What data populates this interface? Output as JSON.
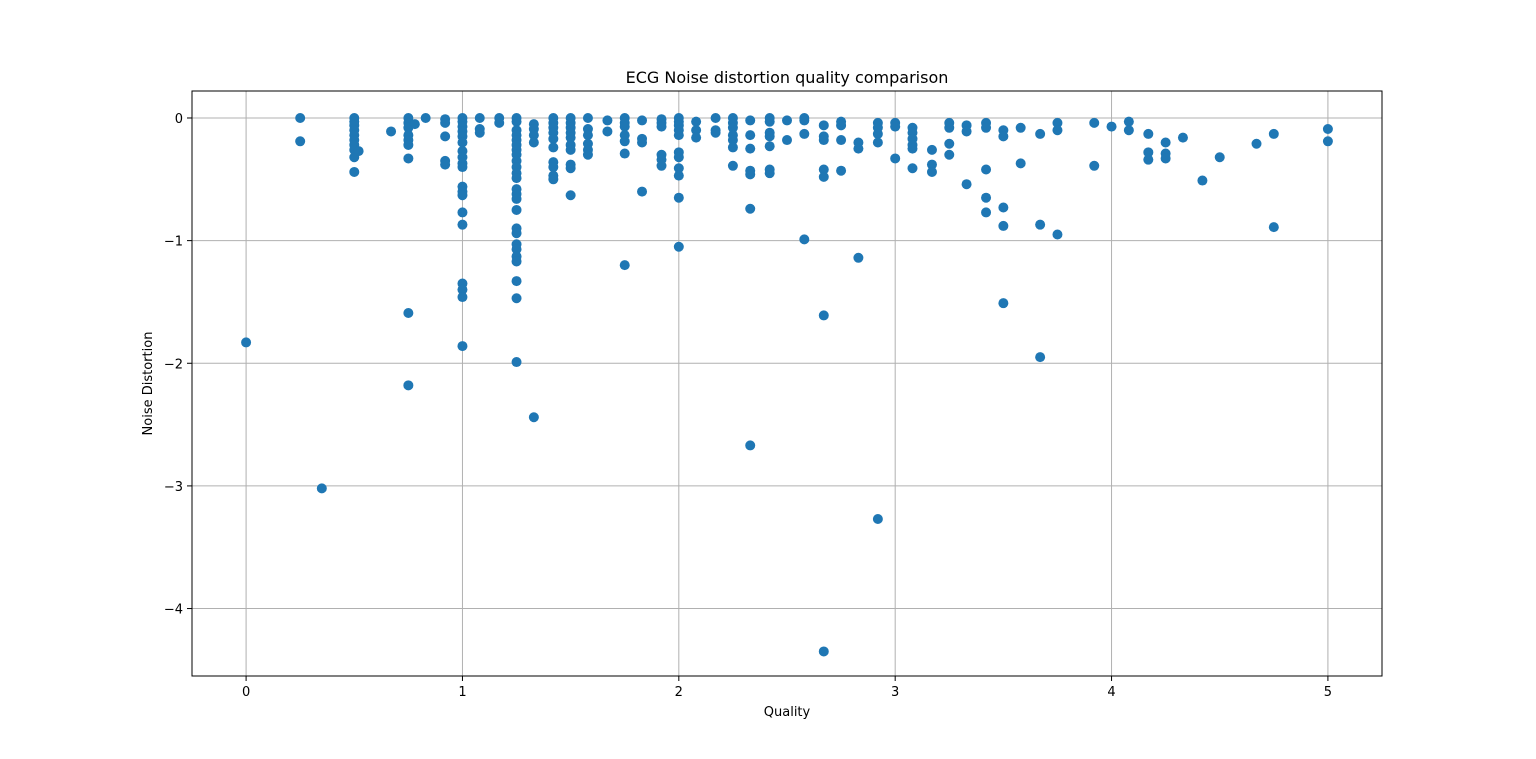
{
  "chart_data": {
    "type": "scatter",
    "title": "ECG Noise distortion quality comparison",
    "xlabel": "Quality",
    "ylabel": "Noise Distortion",
    "xlim": [
      -0.25,
      5.25
    ],
    "ylim": [
      -4.55,
      0.22
    ],
    "xticks": [
      0,
      1,
      2,
      3,
      4,
      5
    ],
    "yticks": [
      0,
      -1,
      -2,
      -3,
      -4
    ],
    "grid": true,
    "color": "#1f77b4",
    "points": [
      [
        0,
        -1.83
      ],
      [
        0.25,
        0.0
      ],
      [
        0.25,
        -0.19
      ],
      [
        0.35,
        -3.02
      ],
      [
        0.5,
        0.0
      ],
      [
        0.5,
        -0.03
      ],
      [
        0.5,
        -0.06
      ],
      [
        0.5,
        -0.1
      ],
      [
        0.5,
        -0.14
      ],
      [
        0.5,
        -0.18
      ],
      [
        0.5,
        -0.22
      ],
      [
        0.5,
        -0.26
      ],
      [
        0.5,
        -0.32
      ],
      [
        0.5,
        -0.44
      ],
      [
        0.52,
        -0.27
      ],
      [
        0.67,
        -0.11
      ],
      [
        0.75,
        0.0
      ],
      [
        0.75,
        -0.04
      ],
      [
        0.75,
        -0.08
      ],
      [
        0.75,
        -0.14
      ],
      [
        0.75,
        -0.18
      ],
      [
        0.75,
        -0.22
      ],
      [
        0.75,
        -0.33
      ],
      [
        0.75,
        -1.59
      ],
      [
        0.75,
        -2.18
      ],
      [
        0.78,
        -0.05
      ],
      [
        0.83,
        0.0
      ],
      [
        0.92,
        -0.01
      ],
      [
        0.92,
        -0.04
      ],
      [
        0.92,
        -0.15
      ],
      [
        0.92,
        -0.35
      ],
      [
        0.92,
        -0.38
      ],
      [
        1.0,
        0.0
      ],
      [
        1.0,
        -0.03
      ],
      [
        1.0,
        -0.07
      ],
      [
        1.0,
        -0.11
      ],
      [
        1.0,
        -0.15
      ],
      [
        1.0,
        -0.2
      ],
      [
        1.0,
        -0.27
      ],
      [
        1.0,
        -0.32
      ],
      [
        1.0,
        -0.37
      ],
      [
        1.0,
        -0.4
      ],
      [
        1.0,
        -0.56
      ],
      [
        1.0,
        -0.6
      ],
      [
        1.0,
        -0.63
      ],
      [
        1.0,
        -0.77
      ],
      [
        1.0,
        -0.87
      ],
      [
        1.0,
        -1.35
      ],
      [
        1.0,
        -1.4
      ],
      [
        1.0,
        -1.46
      ],
      [
        1.0,
        -1.86
      ],
      [
        1.08,
        0.0
      ],
      [
        1.08,
        -0.09
      ],
      [
        1.08,
        -0.12
      ],
      [
        1.17,
        0.0
      ],
      [
        1.17,
        -0.04
      ],
      [
        1.25,
        0.0
      ],
      [
        1.25,
        -0.03
      ],
      [
        1.25,
        -0.1
      ],
      [
        1.25,
        -0.14
      ],
      [
        1.25,
        -0.18
      ],
      [
        1.25,
        -0.22
      ],
      [
        1.25,
        -0.26
      ],
      [
        1.25,
        -0.3
      ],
      [
        1.25,
        -0.35
      ],
      [
        1.25,
        -0.4
      ],
      [
        1.25,
        -0.45
      ],
      [
        1.25,
        -0.49
      ],
      [
        1.25,
        -0.58
      ],
      [
        1.25,
        -0.62
      ],
      [
        1.25,
        -0.66
      ],
      [
        1.25,
        -0.75
      ],
      [
        1.25,
        -0.9
      ],
      [
        1.25,
        -0.94
      ],
      [
        1.25,
        -1.03
      ],
      [
        1.25,
        -1.07
      ],
      [
        1.25,
        -1.13
      ],
      [
        1.25,
        -1.17
      ],
      [
        1.25,
        -1.33
      ],
      [
        1.25,
        -1.47
      ],
      [
        1.25,
        -1.99
      ],
      [
        1.33,
        -0.05
      ],
      [
        1.33,
        -0.09
      ],
      [
        1.33,
        -0.14
      ],
      [
        1.33,
        -0.2
      ],
      [
        1.33,
        -2.44
      ],
      [
        1.42,
        0.0
      ],
      [
        1.42,
        -0.04
      ],
      [
        1.42,
        -0.08
      ],
      [
        1.42,
        -0.12
      ],
      [
        1.42,
        -0.17
      ],
      [
        1.42,
        -0.24
      ],
      [
        1.42,
        -0.36
      ],
      [
        1.42,
        -0.4
      ],
      [
        1.42,
        -0.47
      ],
      [
        1.42,
        -0.5
      ],
      [
        1.5,
        0.0
      ],
      [
        1.5,
        -0.04
      ],
      [
        1.5,
        -0.08
      ],
      [
        1.5,
        -0.12
      ],
      [
        1.5,
        -0.16
      ],
      [
        1.5,
        -0.22
      ],
      [
        1.5,
        -0.26
      ],
      [
        1.5,
        -0.38
      ],
      [
        1.5,
        -0.41
      ],
      [
        1.5,
        -0.63
      ],
      [
        1.58,
        0.0
      ],
      [
        1.58,
        -0.09
      ],
      [
        1.58,
        -0.14
      ],
      [
        1.58,
        -0.21
      ],
      [
        1.58,
        -0.26
      ],
      [
        1.58,
        -0.3
      ],
      [
        1.67,
        -0.02
      ],
      [
        1.67,
        -0.11
      ],
      [
        1.75,
        0.0
      ],
      [
        1.75,
        -0.04
      ],
      [
        1.75,
        -0.07
      ],
      [
        1.75,
        -0.14
      ],
      [
        1.75,
        -0.19
      ],
      [
        1.75,
        -0.29
      ],
      [
        1.75,
        -1.2
      ],
      [
        1.83,
        -0.02
      ],
      [
        1.83,
        -0.17
      ],
      [
        1.83,
        -0.2
      ],
      [
        1.83,
        -0.6
      ],
      [
        1.92,
        -0.01
      ],
      [
        1.92,
        -0.04
      ],
      [
        1.92,
        -0.07
      ],
      [
        1.92,
        -0.3
      ],
      [
        1.92,
        -0.34
      ],
      [
        1.92,
        -0.39
      ],
      [
        2.0,
        0.0
      ],
      [
        2.0,
        -0.03
      ],
      [
        2.0,
        -0.06
      ],
      [
        2.0,
        -0.1
      ],
      [
        2.0,
        -0.14
      ],
      [
        2.0,
        -0.28
      ],
      [
        2.0,
        -0.32
      ],
      [
        2.0,
        -0.41
      ],
      [
        2.0,
        -0.47
      ],
      [
        2.0,
        -0.65
      ],
      [
        2.0,
        -1.05
      ],
      [
        2.08,
        -0.03
      ],
      [
        2.08,
        -0.1
      ],
      [
        2.08,
        -0.16
      ],
      [
        2.17,
        0.0
      ],
      [
        2.17,
        -0.1
      ],
      [
        2.17,
        -0.12
      ],
      [
        2.25,
        0.0
      ],
      [
        2.25,
        -0.04
      ],
      [
        2.25,
        -0.08
      ],
      [
        2.25,
        -0.14
      ],
      [
        2.25,
        -0.18
      ],
      [
        2.25,
        -0.24
      ],
      [
        2.25,
        -0.39
      ],
      [
        2.33,
        -0.02
      ],
      [
        2.33,
        -0.14
      ],
      [
        2.33,
        -0.25
      ],
      [
        2.33,
        -0.43
      ],
      [
        2.33,
        -0.46
      ],
      [
        2.33,
        -0.74
      ],
      [
        2.33,
        -2.67
      ],
      [
        2.42,
        0.0
      ],
      [
        2.42,
        -0.03
      ],
      [
        2.42,
        -0.12
      ],
      [
        2.42,
        -0.15
      ],
      [
        2.42,
        -0.23
      ],
      [
        2.42,
        -0.42
      ],
      [
        2.42,
        -0.45
      ],
      [
        2.5,
        -0.02
      ],
      [
        2.5,
        -0.18
      ],
      [
        2.58,
        0.0
      ],
      [
        2.58,
        -0.02
      ],
      [
        2.58,
        -0.13
      ],
      [
        2.58,
        -0.99
      ],
      [
        2.67,
        -0.06
      ],
      [
        2.67,
        -0.15
      ],
      [
        2.67,
        -0.18
      ],
      [
        2.67,
        -0.42
      ],
      [
        2.67,
        -0.48
      ],
      [
        2.67,
        -1.61
      ],
      [
        2.67,
        -4.35
      ],
      [
        2.75,
        -0.03
      ],
      [
        2.75,
        -0.06
      ],
      [
        2.75,
        -0.18
      ],
      [
        2.75,
        -0.43
      ],
      [
        2.83,
        -0.2
      ],
      [
        2.83,
        -0.25
      ],
      [
        2.83,
        -1.14
      ],
      [
        2.92,
        -0.04
      ],
      [
        2.92,
        -0.08
      ],
      [
        2.92,
        -0.13
      ],
      [
        2.92,
        -0.2
      ],
      [
        2.92,
        -3.27
      ],
      [
        3.0,
        -0.04
      ],
      [
        3.0,
        -0.07
      ],
      [
        3.0,
        -0.33
      ],
      [
        3.08,
        -0.08
      ],
      [
        3.08,
        -0.12
      ],
      [
        3.08,
        -0.17
      ],
      [
        3.08,
        -0.22
      ],
      [
        3.08,
        -0.25
      ],
      [
        3.08,
        -0.41
      ],
      [
        3.17,
        -0.26
      ],
      [
        3.17,
        -0.38
      ],
      [
        3.17,
        -0.44
      ],
      [
        3.25,
        -0.04
      ],
      [
        3.25,
        -0.08
      ],
      [
        3.25,
        -0.21
      ],
      [
        3.25,
        -0.3
      ],
      [
        3.33,
        -0.06
      ],
      [
        3.33,
        -0.11
      ],
      [
        3.33,
        -0.54
      ],
      [
        3.42,
        -0.04
      ],
      [
        3.42,
        -0.08
      ],
      [
        3.42,
        -0.42
      ],
      [
        3.42,
        -0.65
      ],
      [
        3.42,
        -0.77
      ],
      [
        3.5,
        -0.1
      ],
      [
        3.5,
        -0.15
      ],
      [
        3.5,
        -0.73
      ],
      [
        3.5,
        -0.88
      ],
      [
        3.5,
        -1.51
      ],
      [
        3.58,
        -0.08
      ],
      [
        3.58,
        -0.37
      ],
      [
        3.67,
        -0.13
      ],
      [
        3.67,
        -0.87
      ],
      [
        3.67,
        -1.95
      ],
      [
        3.75,
        -0.04
      ],
      [
        3.75,
        -0.1
      ],
      [
        3.75,
        -0.95
      ],
      [
        3.92,
        -0.04
      ],
      [
        3.92,
        -0.39
      ],
      [
        4.0,
        -0.07
      ],
      [
        4.08,
        -0.03
      ],
      [
        4.08,
        -0.1
      ],
      [
        4.17,
        -0.13
      ],
      [
        4.17,
        -0.28
      ],
      [
        4.17,
        -0.34
      ],
      [
        4.25,
        -0.2
      ],
      [
        4.25,
        -0.29
      ],
      [
        4.25,
        -0.33
      ],
      [
        4.33,
        -0.16
      ],
      [
        4.42,
        -0.51
      ],
      [
        4.5,
        -0.32
      ],
      [
        4.67,
        -0.21
      ],
      [
        4.75,
        -0.13
      ],
      [
        4.75,
        -0.89
      ],
      [
        5.0,
        -0.09
      ],
      [
        5.0,
        -0.19
      ]
    ]
  }
}
